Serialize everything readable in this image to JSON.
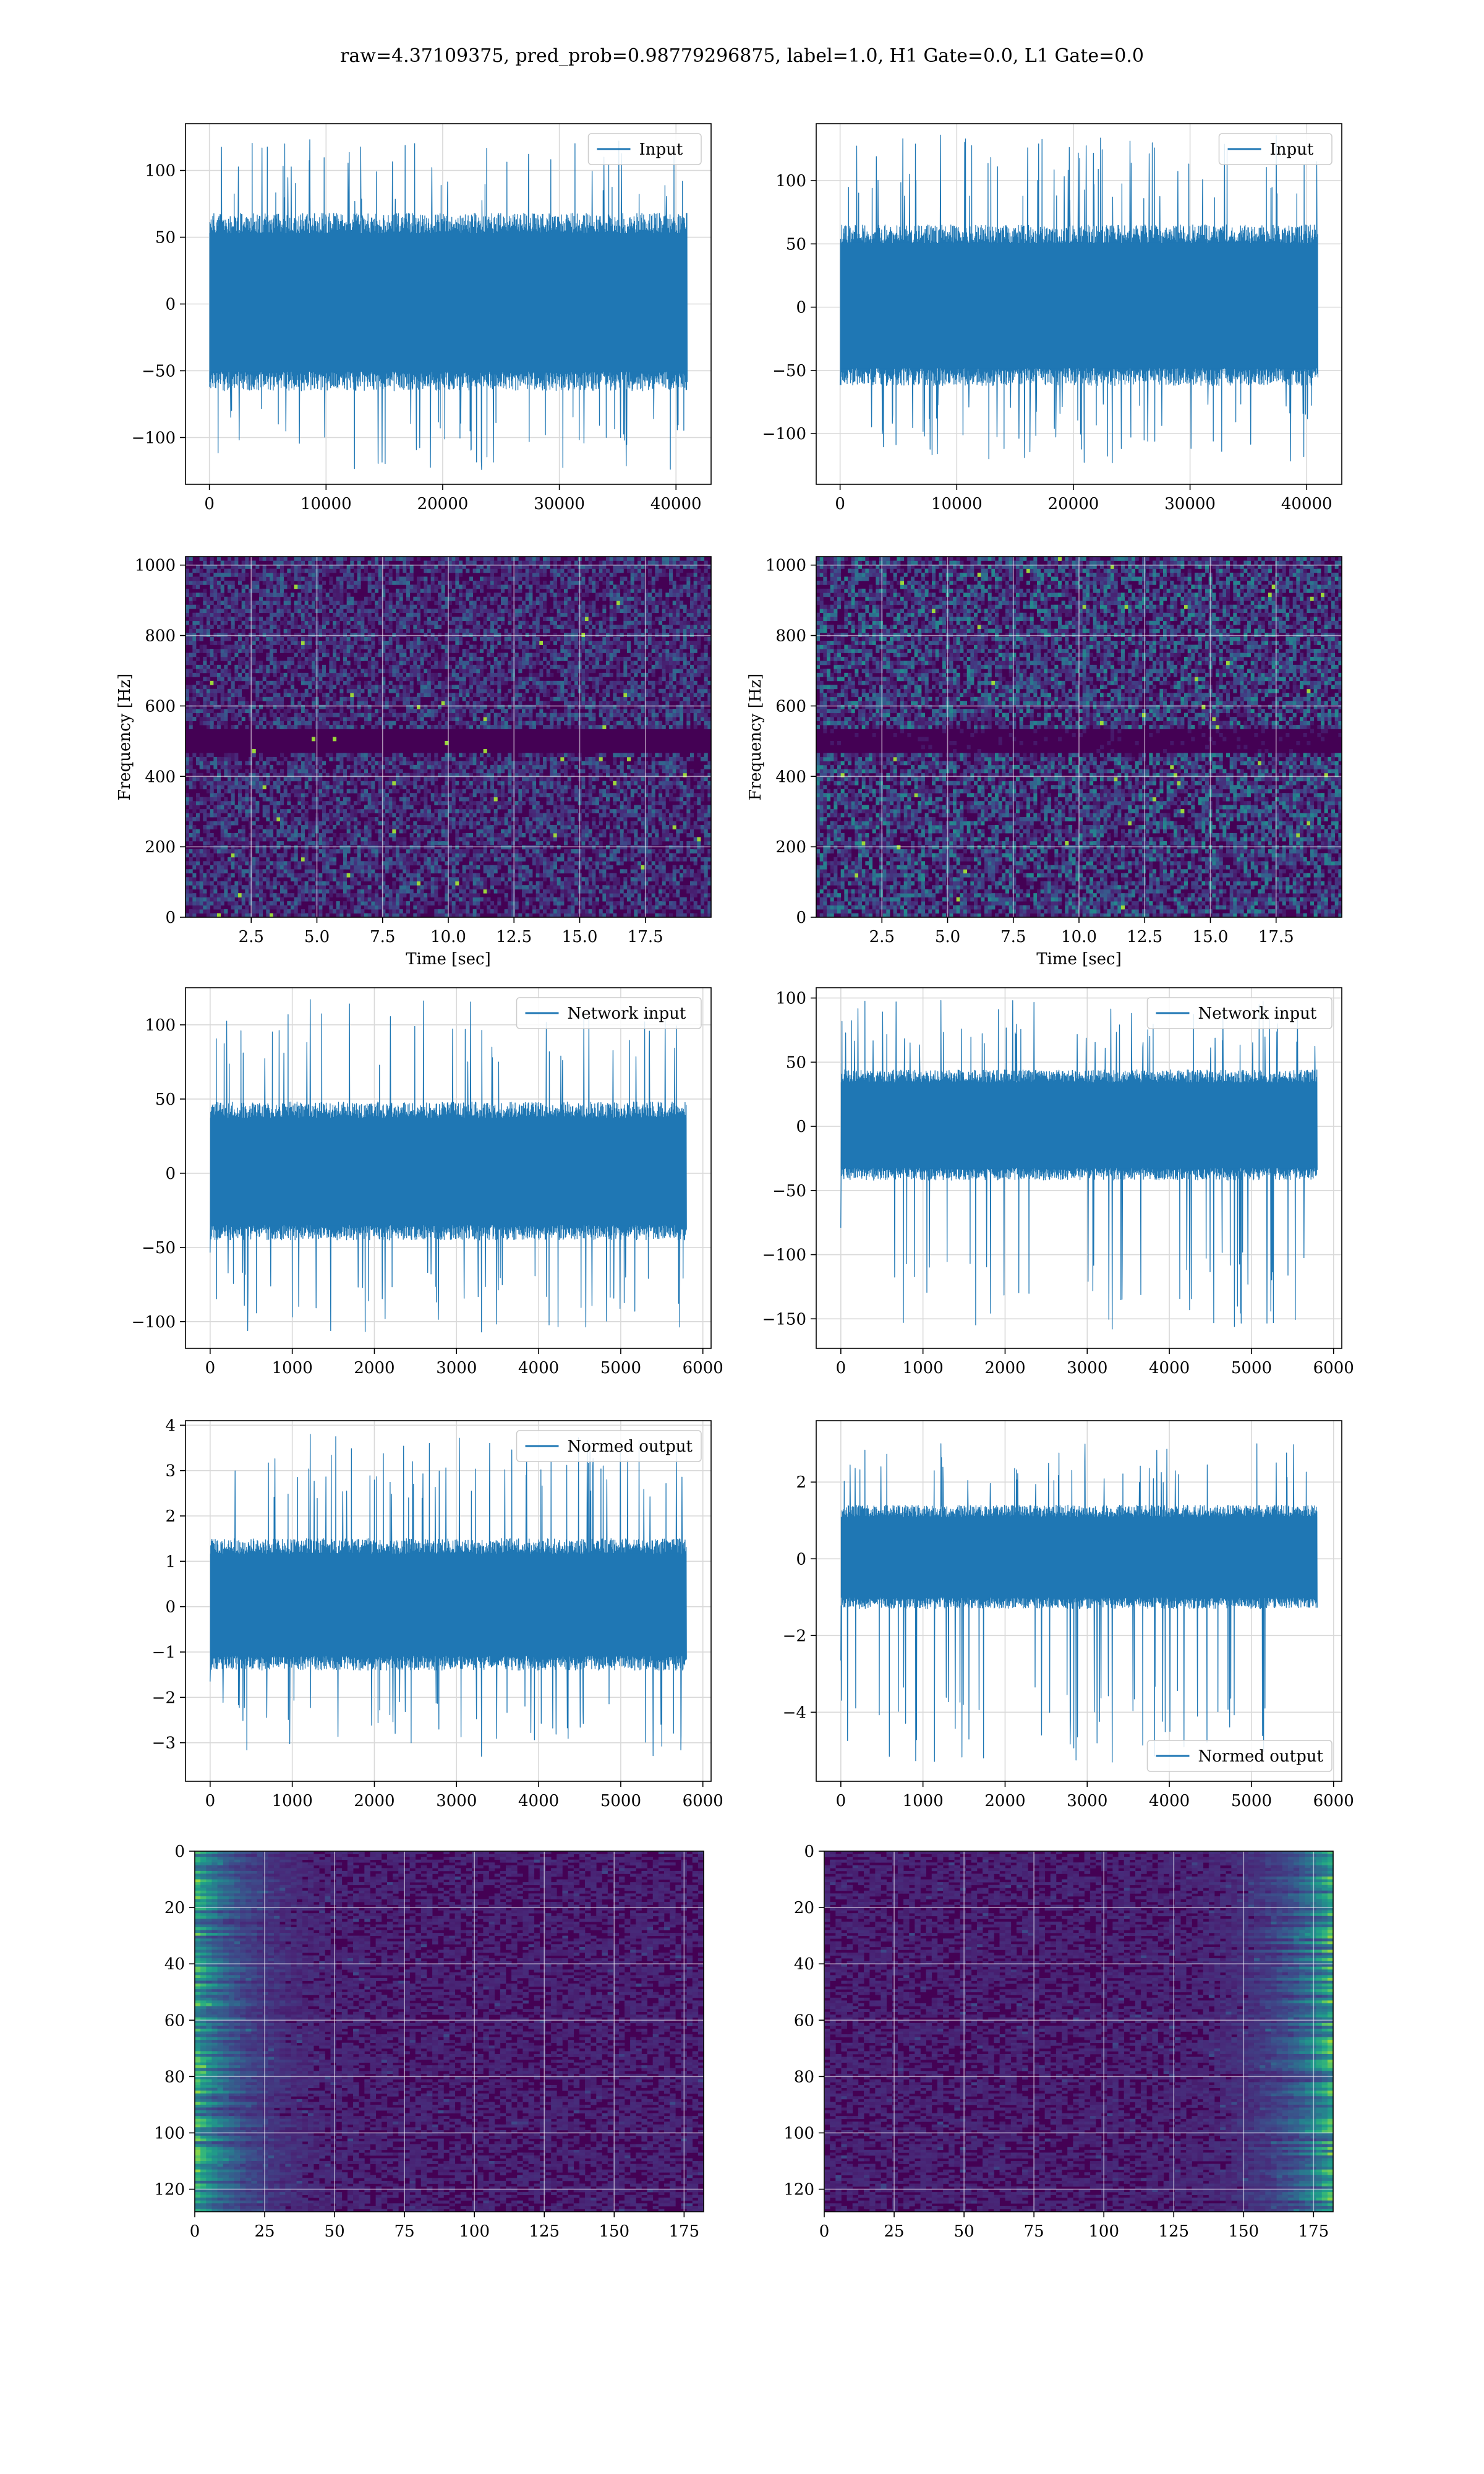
{
  "figure": {
    "title": "raw=4.37109375, pred_prob=0.98779296875, label=1.0, H1 Gate=0.0, L1 Gate=0.0"
  },
  "colors": {
    "line": "#1f77b4",
    "grid": "#d9d9d9",
    "axis": "#000000",
    "viridis": [
      "#440154",
      "#482878",
      "#3e4989",
      "#31688e",
      "#26828e",
      "#1f9e89",
      "#35b779",
      "#6ece58",
      "#b5de2b",
      "#fde725"
    ]
  },
  "chart_data": [
    {
      "id": "h1-input",
      "type": "line",
      "title": "",
      "xlabel": "",
      "ylabel": "",
      "xlim": [
        -2048,
        43008
      ],
      "ylim": [
        -135,
        135
      ],
      "xticks": [
        0,
        10000,
        20000,
        30000,
        40000
      ],
      "yticks": [
        -100,
        -50,
        0,
        50,
        100
      ],
      "xticklabels": [
        "0",
        "10000",
        "20000",
        "30000",
        "40000"
      ],
      "yticklabels": [
        "−100",
        "−50",
        "0",
        "50",
        "100"
      ],
      "grid": true,
      "legend": {
        "entries": [
          "Input"
        ],
        "loc": "upper right"
      },
      "series": [
        {
          "name": "Input",
          "x_range": [
            0,
            40960
          ],
          "band": [
            -65,
            68
          ],
          "peak_max": 123,
          "peak_min": -124,
          "seed": 11
        }
      ]
    },
    {
      "id": "l1-input",
      "type": "line",
      "title": "",
      "xlabel": "",
      "ylabel": "",
      "xlim": [
        -2048,
        43008
      ],
      "ylim": [
        -140,
        145
      ],
      "xticks": [
        0,
        10000,
        20000,
        30000,
        40000
      ],
      "yticks": [
        -100,
        -50,
        0,
        50,
        100
      ],
      "xticklabels": [
        "0",
        "10000",
        "20000",
        "30000",
        "40000"
      ],
      "yticklabels": [
        "−100",
        "−50",
        "0",
        "50",
        "100"
      ],
      "grid": true,
      "legend": {
        "entries": [
          "Input"
        ],
        "loc": "upper right"
      },
      "series": [
        {
          "name": "Input",
          "x_range": [
            0,
            40960
          ],
          "band": [
            -62,
            65
          ],
          "peak_max": 136,
          "peak_min": -123,
          "seed": 23
        }
      ]
    },
    {
      "id": "h1-spectrogram",
      "type": "heatmap",
      "title": "",
      "xlabel": "Time [sec]",
      "ylabel": "Frequency [Hz]",
      "xlim": [
        0,
        20
      ],
      "ylim": [
        0,
        1024
      ],
      "xticks": [
        2.5,
        5,
        7.5,
        10,
        12.5,
        15,
        17.5
      ],
      "yticks": [
        0,
        200,
        400,
        600,
        800,
        1000
      ],
      "xticklabels": [
        "2.5",
        "5.0",
        "7.5",
        "10.0",
        "12.5",
        "15.0",
        "17.5"
      ],
      "yticklabels": [
        "0",
        "200",
        "400",
        "600",
        "800",
        "1000"
      ],
      "grid": true,
      "colormap": "viridis",
      "dark_band_hz": [
        470,
        530
      ],
      "intensity": 0.33,
      "seed": 5
    },
    {
      "id": "l1-spectrogram",
      "type": "heatmap",
      "title": "",
      "xlabel": "Time [sec]",
      "ylabel": "Frequency [Hz]",
      "xlim": [
        0,
        20
      ],
      "ylim": [
        0,
        1024
      ],
      "xticks": [
        2.5,
        5,
        7.5,
        10,
        12.5,
        15,
        17.5
      ],
      "yticks": [
        0,
        200,
        400,
        600,
        800,
        1000
      ],
      "xticklabels": [
        "2.5",
        "5.0",
        "7.5",
        "10.0",
        "12.5",
        "15.0",
        "17.5"
      ],
      "yticklabels": [
        "0",
        "200",
        "400",
        "600",
        "800",
        "1000"
      ],
      "grid": true,
      "colormap": "viridis",
      "dark_band_hz": [
        470,
        530
      ],
      "intensity": 0.45,
      "seed": 9
    },
    {
      "id": "h1-network-input",
      "type": "line",
      "title": "",
      "xlabel": "",
      "ylabel": "",
      "xlim": [
        -300,
        6100
      ],
      "ylim": [
        -118,
        125
      ],
      "xticks": [
        0,
        1000,
        2000,
        3000,
        4000,
        5000,
        6000
      ],
      "yticks": [
        -100,
        -50,
        0,
        50,
        100
      ],
      "xticklabels": [
        "0",
        "1000",
        "2000",
        "3000",
        "4000",
        "5000",
        "6000"
      ],
      "yticklabels": [
        "−100",
        "−50",
        "0",
        "50",
        "100"
      ],
      "grid": true,
      "legend": {
        "entries": [
          "Network input"
        ],
        "loc": "upper right"
      },
      "series": [
        {
          "name": "Network input",
          "x_range": [
            0,
            5800
          ],
          "band": [
            -45,
            48
          ],
          "peak_max": 117,
          "peak_min": -107,
          "seed": 31
        }
      ]
    },
    {
      "id": "l1-network-input",
      "type": "line",
      "title": "",
      "xlabel": "",
      "ylabel": "",
      "xlim": [
        -300,
        6100
      ],
      "ylim": [
        -173,
        108
      ],
      "xticks": [
        0,
        1000,
        2000,
        3000,
        4000,
        5000,
        6000
      ],
      "yticks": [
        -150,
        -100,
        -50,
        0,
        50,
        100
      ],
      "xticklabels": [
        "0",
        "1000",
        "2000",
        "3000",
        "4000",
        "5000",
        "6000"
      ],
      "yticklabels": [
        "−150",
        "−100",
        "−50",
        "0",
        "50",
        "100"
      ],
      "grid": true,
      "legend": {
        "entries": [
          "Network input"
        ],
        "loc": "upper right"
      },
      "series": [
        {
          "name": "Network input",
          "x_range": [
            0,
            5800
          ],
          "band": [
            -42,
            44
          ],
          "peak_max": 98,
          "peak_min": -158,
          "seed": 47
        }
      ]
    },
    {
      "id": "h1-normed-output",
      "type": "line",
      "title": "",
      "xlabel": "",
      "ylabel": "",
      "xlim": [
        -300,
        6100
      ],
      "ylim": [
        -3.85,
        4.1
      ],
      "xticks": [
        0,
        1000,
        2000,
        3000,
        4000,
        5000,
        6000
      ],
      "yticks": [
        -3,
        -2,
        -1,
        0,
        1,
        2,
        3,
        4
      ],
      "xticklabels": [
        "0",
        "1000",
        "2000",
        "3000",
        "4000",
        "5000",
        "6000"
      ],
      "yticklabels": [
        "−3",
        "−2",
        "−1",
        "0",
        "1",
        "2",
        "3",
        "4"
      ],
      "grid": true,
      "legend": {
        "entries": [
          "Normed output"
        ],
        "loc": "upper right"
      },
      "series": [
        {
          "name": "Normed output",
          "x_range": [
            0,
            5800
          ],
          "band": [
            -1.4,
            1.5
          ],
          "peak_max": 3.8,
          "peak_min": -3.3,
          "seed": 53
        }
      ]
    },
    {
      "id": "l1-normed-output",
      "type": "line",
      "title": "",
      "xlabel": "",
      "ylabel": "",
      "xlim": [
        -300,
        6100
      ],
      "ylim": [
        -5.8,
        3.6
      ],
      "xticks": [
        0,
        1000,
        2000,
        3000,
        4000,
        5000,
        6000
      ],
      "yticks": [
        -4,
        -2,
        0,
        2
      ],
      "xticklabels": [
        "0",
        "1000",
        "2000",
        "3000",
        "4000",
        "5000",
        "6000"
      ],
      "yticklabels": [
        "−4",
        "−2",
        "0",
        "2"
      ],
      "grid": true,
      "legend": {
        "entries": [
          "Normed output"
        ],
        "loc": "lower right"
      },
      "series": [
        {
          "name": "Normed output",
          "x_range": [
            0,
            5800
          ],
          "band": [
            -1.3,
            1.4
          ],
          "peak_max": 3.0,
          "peak_min": -5.3,
          "seed": 61
        }
      ]
    },
    {
      "id": "h1-feature-map",
      "type": "heatmap",
      "title": "",
      "xlabel": "",
      "ylabel": "",
      "xlim": [
        0,
        182
      ],
      "ylim": [
        128,
        0
      ],
      "xticks": [
        0,
        25,
        50,
        75,
        100,
        125,
        150,
        175
      ],
      "yticks": [
        0,
        20,
        40,
        60,
        80,
        100,
        120
      ],
      "xticklabels": [
        "0",
        "25",
        "50",
        "75",
        "100",
        "125",
        "150",
        "175"
      ],
      "yticklabels": [
        "0",
        "20",
        "40",
        "60",
        "80",
        "100",
        "120"
      ],
      "grid": true,
      "colormap": "viridis",
      "bright_edge": "left",
      "seed": 71
    },
    {
      "id": "l1-feature-map",
      "type": "heatmap",
      "title": "",
      "xlabel": "",
      "ylabel": "",
      "xlim": [
        0,
        182
      ],
      "ylim": [
        128,
        0
      ],
      "xticks": [
        0,
        25,
        50,
        75,
        100,
        125,
        150,
        175
      ],
      "yticks": [
        0,
        20,
        40,
        60,
        80,
        100,
        120
      ],
      "xticklabels": [
        "0",
        "25",
        "50",
        "75",
        "100",
        "125",
        "150",
        "175"
      ],
      "yticklabels": [
        "0",
        "20",
        "40",
        "60",
        "80",
        "100",
        "120"
      ],
      "grid": true,
      "colormap": "viridis",
      "bright_edge": "right",
      "seed": 83
    }
  ]
}
